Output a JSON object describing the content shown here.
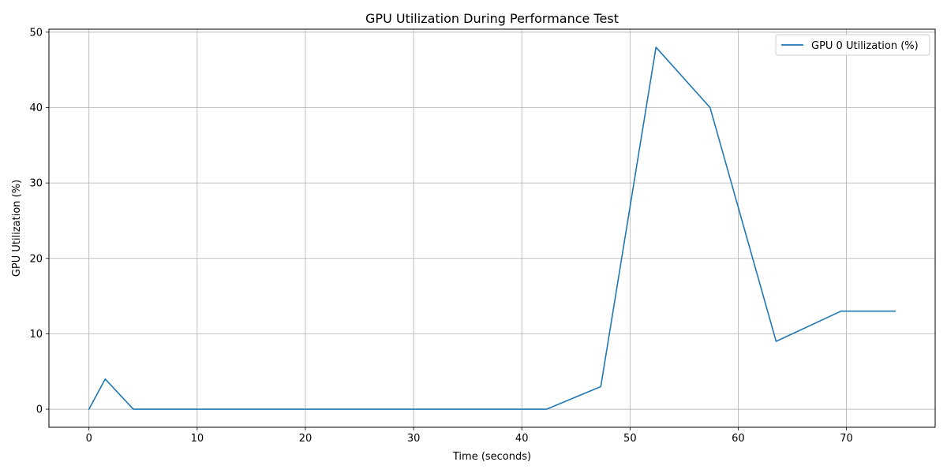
{
  "chart_data": {
    "type": "line",
    "title": "GPU Utilization During Performance Test",
    "xlabel": "Time (seconds)",
    "ylabel": "GPU Utilization (%)",
    "xlim": [
      -3.7,
      78.2
    ],
    "ylim": [
      -2.4,
      50.4
    ],
    "xticks": [
      0,
      10,
      20,
      30,
      40,
      50,
      60,
      70
    ],
    "yticks": [
      0,
      10,
      20,
      30,
      40,
      50
    ],
    "grid": true,
    "legend_position": "top-right",
    "series": [
      {
        "name": "GPU 0 Utilization (%)",
        "color": "#1f77b4",
        "x": [
          0,
          1.5,
          4.1,
          42.3,
          47.3,
          52.4,
          57.4,
          63.5,
          69.5,
          74.5
        ],
        "y": [
          0,
          4,
          0,
          0,
          3,
          48,
          40,
          9,
          13,
          13
        ]
      }
    ]
  }
}
